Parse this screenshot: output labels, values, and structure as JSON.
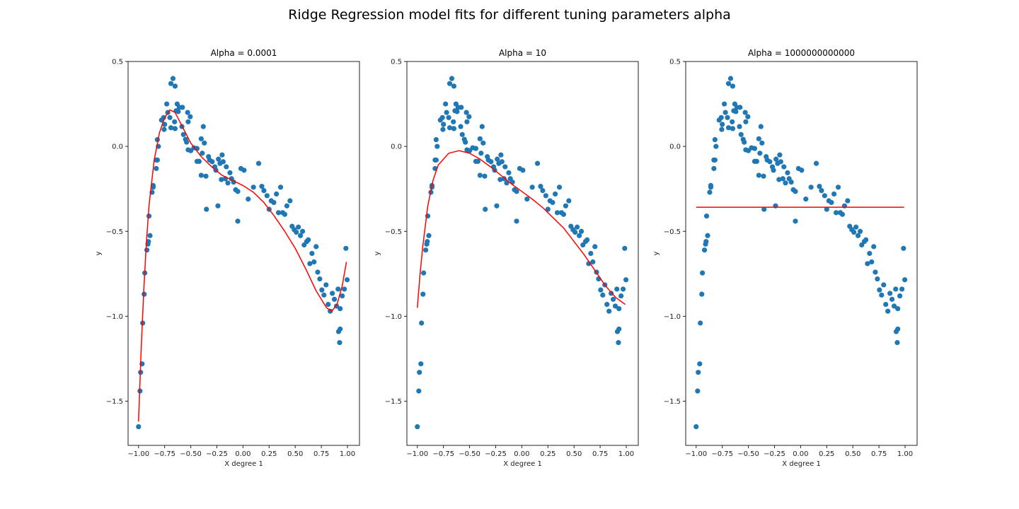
{
  "chart_data": {
    "title": "Ridge Regression model fits for different tuning parameters alpha",
    "type": "scatter",
    "colors": {
      "points": "#1f77b4",
      "fit": "#ff0000",
      "axes": "#222222"
    },
    "scatter_points": {
      "x": [
        -1.0,
        -0.986,
        -0.98,
        -0.966,
        -0.96,
        -0.946,
        -0.94,
        -0.92,
        -0.91,
        -0.905,
        -0.89,
        -0.9,
        -0.87,
        -0.86,
        -0.86,
        -0.83,
        -0.83,
        -0.82,
        -0.81,
        -0.82,
        -0.78,
        -0.76,
        -0.75,
        -0.755,
        -0.73,
        -0.72,
        -0.7,
        -0.69,
        -0.65,
        -0.67,
        -0.69,
        -0.65,
        -0.63,
        -0.61,
        -0.64,
        -0.62,
        -0.58,
        -0.53,
        -0.505,
        -0.525,
        -0.655,
        -0.585,
        -0.57,
        -0.55,
        -0.54,
        -0.525,
        -0.5,
        -0.47,
        -0.44,
        -0.44,
        -0.42,
        -0.4,
        -0.38,
        -0.39,
        -0.4,
        -0.355,
        -0.37,
        -0.33,
        -0.32,
        -0.295,
        -0.27,
        -0.26,
        -0.235,
        -0.22,
        -0.2,
        -0.19,
        -0.16,
        -0.207,
        -0.17,
        -0.145,
        -0.125,
        -0.11,
        -0.09,
        -0.07,
        -0.05,
        -0.02,
        0.01,
        0.1,
        0.15,
        0.05,
        -0.05,
        -0.24,
        -0.35,
        0.18,
        0.2,
        0.23,
        0.25,
        0.27,
        0.295,
        0.32,
        0.34,
        0.36,
        0.38,
        0.4,
        0.42,
        0.45,
        0.47,
        0.49,
        0.51,
        0.53,
        0.55,
        0.57,
        0.585,
        0.61,
        0.625,
        0.64,
        0.66,
        0.68,
        0.7,
        0.715,
        0.735,
        0.755,
        0.775,
        0.795,
        0.815,
        0.835,
        0.855,
        0.875,
        0.895,
        0.915,
        0.925,
        0.93,
        0.95,
        0.97,
        0.985,
        0.997,
        0.93,
        0.91
      ],
      "y": [
        -1.65,
        -1.44,
        -1.33,
        -1.28,
        -1.04,
        -0.87,
        -0.745,
        -0.61,
        -0.575,
        -0.56,
        -0.525,
        -0.41,
        -0.27,
        -0.24,
        -0.23,
        -0.13,
        -0.08,
        -0.08,
        0.0,
        0.04,
        0.155,
        0.17,
        0.13,
        0.1,
        0.25,
        0.2,
        0.17,
        0.11,
        0.105,
        0.4,
        0.37,
        0.355,
        0.25,
        0.23,
        0.21,
        0.205,
        0.23,
        0.2,
        0.175,
        0.145,
        0.145,
        0.117,
        0.07,
        0.042,
        0.025,
        -0.02,
        -0.025,
        -0.008,
        -0.012,
        -0.088,
        -0.088,
        0.045,
        0.117,
        -0.04,
        -0.17,
        -0.175,
        0.02,
        -0.06,
        -0.08,
        -0.09,
        -0.12,
        -0.14,
        -0.075,
        -0.1,
        -0.05,
        -0.09,
        -0.12,
        -0.195,
        -0.19,
        -0.215,
        -0.155,
        -0.19,
        -0.21,
        -0.255,
        -0.265,
        -0.13,
        -0.14,
        -0.24,
        -0.1,
        -0.31,
        -0.44,
        -0.35,
        -0.37,
        -0.235,
        -0.26,
        -0.29,
        -0.37,
        -0.32,
        -0.33,
        -0.28,
        -0.39,
        -0.24,
        -0.39,
        -0.4,
        -0.35,
        -0.32,
        -0.47,
        -0.49,
        -0.505,
        -0.475,
        -0.525,
        -0.5,
        -0.58,
        -0.56,
        -0.55,
        -0.69,
        -0.63,
        -0.68,
        -0.59,
        -0.74,
        -0.78,
        -0.845,
        -0.875,
        -0.815,
        -0.93,
        -0.97,
        -0.865,
        -0.9,
        -0.94,
        -1.09,
        -1.155,
        -0.955,
        -0.88,
        -0.84,
        -0.6,
        -0.785,
        -1.075,
        -0.84
      ]
    },
    "panels": [
      {
        "title": "Alpha = 0.0001",
        "xlabel": "X degree 1",
        "ylabel": "y",
        "xlim": [
          -1.1,
          1.115
        ],
        "ylim": [
          -1.76,
          0.5
        ],
        "xticks": [
          -1.0,
          -0.75,
          -0.5,
          -0.25,
          0.0,
          0.25,
          0.5,
          0.75,
          1.0
        ],
        "xtick_labels": [
          "−1.00",
          "−0.75",
          "−0.50",
          "−0.25",
          "0.00",
          "0.25",
          "0.50",
          "0.75",
          "1.00"
        ],
        "yticks": [
          0.5,
          0.0,
          -0.5,
          -1.0,
          -1.5
        ],
        "ytick_labels": [
          "0.5",
          "0.0",
          "−0.5",
          "−1.0",
          "−1.5"
        ],
        "fit": {
          "x": [
            -1.0,
            -0.975,
            -0.95,
            -0.925,
            -0.9,
            -0.85,
            -0.8,
            -0.75,
            -0.7,
            -0.65,
            -0.6,
            -0.5,
            -0.4,
            -0.3,
            -0.2,
            -0.1,
            0.0,
            0.1,
            0.2,
            0.3,
            0.4,
            0.5,
            0.6,
            0.7,
            0.8,
            0.85,
            0.9,
            0.95,
            0.99
          ],
          "y": [
            -1.62,
            -1.2,
            -0.85,
            -0.57,
            -0.35,
            -0.08,
            0.08,
            0.17,
            0.215,
            0.2,
            0.14,
            0.02,
            -0.06,
            -0.12,
            -0.17,
            -0.2,
            -0.23,
            -0.27,
            -0.33,
            -0.41,
            -0.5,
            -0.6,
            -0.72,
            -0.85,
            -0.95,
            -0.97,
            -0.93,
            -0.82,
            -0.68
          ]
        }
      },
      {
        "title": "Alpha = 10",
        "xlabel": "X degree 1",
        "ylabel": "y",
        "xlim": [
          -1.1,
          1.115
        ],
        "ylim": [
          -1.76,
          0.5
        ],
        "xticks": [
          -1.0,
          -0.75,
          -0.5,
          -0.25,
          0.0,
          0.25,
          0.5,
          0.75,
          1.0
        ],
        "xtick_labels": [
          "−1.00",
          "−0.75",
          "−0.50",
          "−0.25",
          "0.00",
          "0.25",
          "0.50",
          "0.75",
          "1.00"
        ],
        "yticks": [
          0.5,
          0.0,
          -0.5,
          -1.0,
          -1.5
        ],
        "ytick_labels": [
          "0.5",
          "0.0",
          "−0.5",
          "−1.0",
          "−1.5"
        ],
        "fit": {
          "x": [
            -1.0,
            -0.975,
            -0.95,
            -0.9,
            -0.85,
            -0.8,
            -0.7,
            -0.6,
            -0.5,
            -0.4,
            -0.3,
            -0.2,
            -0.1,
            0.0,
            0.1,
            0.2,
            0.3,
            0.4,
            0.5,
            0.6,
            0.7,
            0.8,
            0.9,
            0.99
          ],
          "y": [
            -0.95,
            -0.76,
            -0.6,
            -0.35,
            -0.2,
            -0.11,
            -0.04,
            -0.025,
            -0.04,
            -0.075,
            -0.12,
            -0.17,
            -0.22,
            -0.265,
            -0.31,
            -0.36,
            -0.42,
            -0.48,
            -0.56,
            -0.64,
            -0.73,
            -0.82,
            -0.89,
            -0.93
          ]
        }
      },
      {
        "title": "Alpha = 1000000000000",
        "xlabel": "X degree 1",
        "ylabel": "y",
        "xlim": [
          -1.1,
          1.115
        ],
        "ylim": [
          -1.76,
          0.5
        ],
        "xticks": [
          -1.0,
          -0.75,
          -0.5,
          -0.25,
          0.0,
          0.25,
          0.5,
          0.75,
          1.0
        ],
        "xtick_labels": [
          "−1.00",
          "−0.75",
          "−0.50",
          "−0.25",
          "0.00",
          "0.25",
          "0.50",
          "0.75",
          "1.00"
        ],
        "yticks": [
          0.5,
          0.0,
          -0.5,
          -1.0,
          -1.5
        ],
        "ytick_labels": [
          "0.5",
          "0.0",
          "−0.5",
          "−1.0",
          "−1.5"
        ],
        "fit": {
          "x": [
            -1.0,
            0.99
          ],
          "y": [
            -0.358,
            -0.358
          ]
        }
      }
    ]
  }
}
